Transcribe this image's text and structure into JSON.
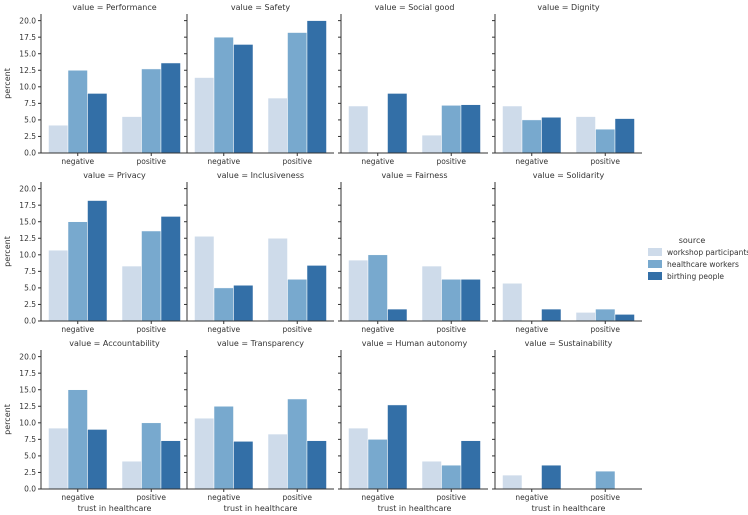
{
  "chart_data": {
    "type": "bar",
    "layout": "facet-grid",
    "facet_title_prefix": "value = ",
    "xlabel": "trust in healthcare",
    "ylabel": "percent",
    "categories": [
      "negative",
      "positive"
    ],
    "ylim": [
      0,
      21
    ],
    "yticks": [
      "0.0",
      "2.5",
      "5.0",
      "7.5",
      "10.0",
      "12.5",
      "15.0",
      "17.5",
      "20.0"
    ],
    "legend": {
      "title": "source",
      "placement": "right",
      "entries": [
        {
          "name": "workshop participants",
          "color": "#cedbea"
        },
        {
          "name": "healthcare workers",
          "color": "#78a9ce"
        },
        {
          "name": "birthing people",
          "color": "#336fa7"
        }
      ]
    },
    "panels": [
      {
        "value": "Performance",
        "series": [
          [
            4.2,
            5.5
          ],
          [
            12.5,
            12.7
          ],
          [
            9.0,
            13.6
          ]
        ]
      },
      {
        "value": "Safety",
        "series": [
          [
            11.4,
            8.3
          ],
          [
            17.5,
            18.2
          ],
          [
            16.4,
            20.0
          ]
        ]
      },
      {
        "value": "Social good",
        "series": [
          [
            7.1,
            2.7
          ],
          [
            0,
            7.2
          ],
          [
            9.0,
            7.3
          ]
        ]
      },
      {
        "value": "Dignity",
        "series": [
          [
            7.1,
            5.5
          ],
          [
            5.0,
            3.6
          ],
          [
            5.4,
            5.2
          ]
        ]
      },
      {
        "value": "Privacy",
        "series": [
          [
            10.7,
            8.3
          ],
          [
            15.0,
            13.6
          ],
          [
            18.2,
            15.8
          ]
        ]
      },
      {
        "value": "Inclusiveness",
        "series": [
          [
            12.8,
            12.5
          ],
          [
            5.0,
            6.3
          ],
          [
            5.4,
            8.4
          ]
        ]
      },
      {
        "value": "Fairness",
        "series": [
          [
            9.2,
            8.3
          ],
          [
            10.0,
            6.3
          ],
          [
            1.8,
            6.3
          ]
        ]
      },
      {
        "value": "Solidarity",
        "series": [
          [
            5.7,
            1.3
          ],
          [
            0,
            1.8
          ],
          [
            1.8,
            1.0
          ]
        ]
      },
      {
        "value": "Accountability",
        "series": [
          [
            9.2,
            4.2
          ],
          [
            15.0,
            10.0
          ],
          [
            9.0,
            7.3
          ]
        ]
      },
      {
        "value": "Transparency",
        "series": [
          [
            10.7,
            8.3
          ],
          [
            12.5,
            13.6
          ],
          [
            7.2,
            7.3
          ]
        ]
      },
      {
        "value": "Human autonomy",
        "series": [
          [
            9.2,
            4.2
          ],
          [
            7.5,
            3.6
          ],
          [
            12.7,
            7.3
          ]
        ]
      },
      {
        "value": "Sustainability",
        "series": [
          [
            2.1,
            0
          ],
          [
            0,
            2.7
          ],
          [
            3.6,
            0
          ]
        ]
      }
    ]
  }
}
